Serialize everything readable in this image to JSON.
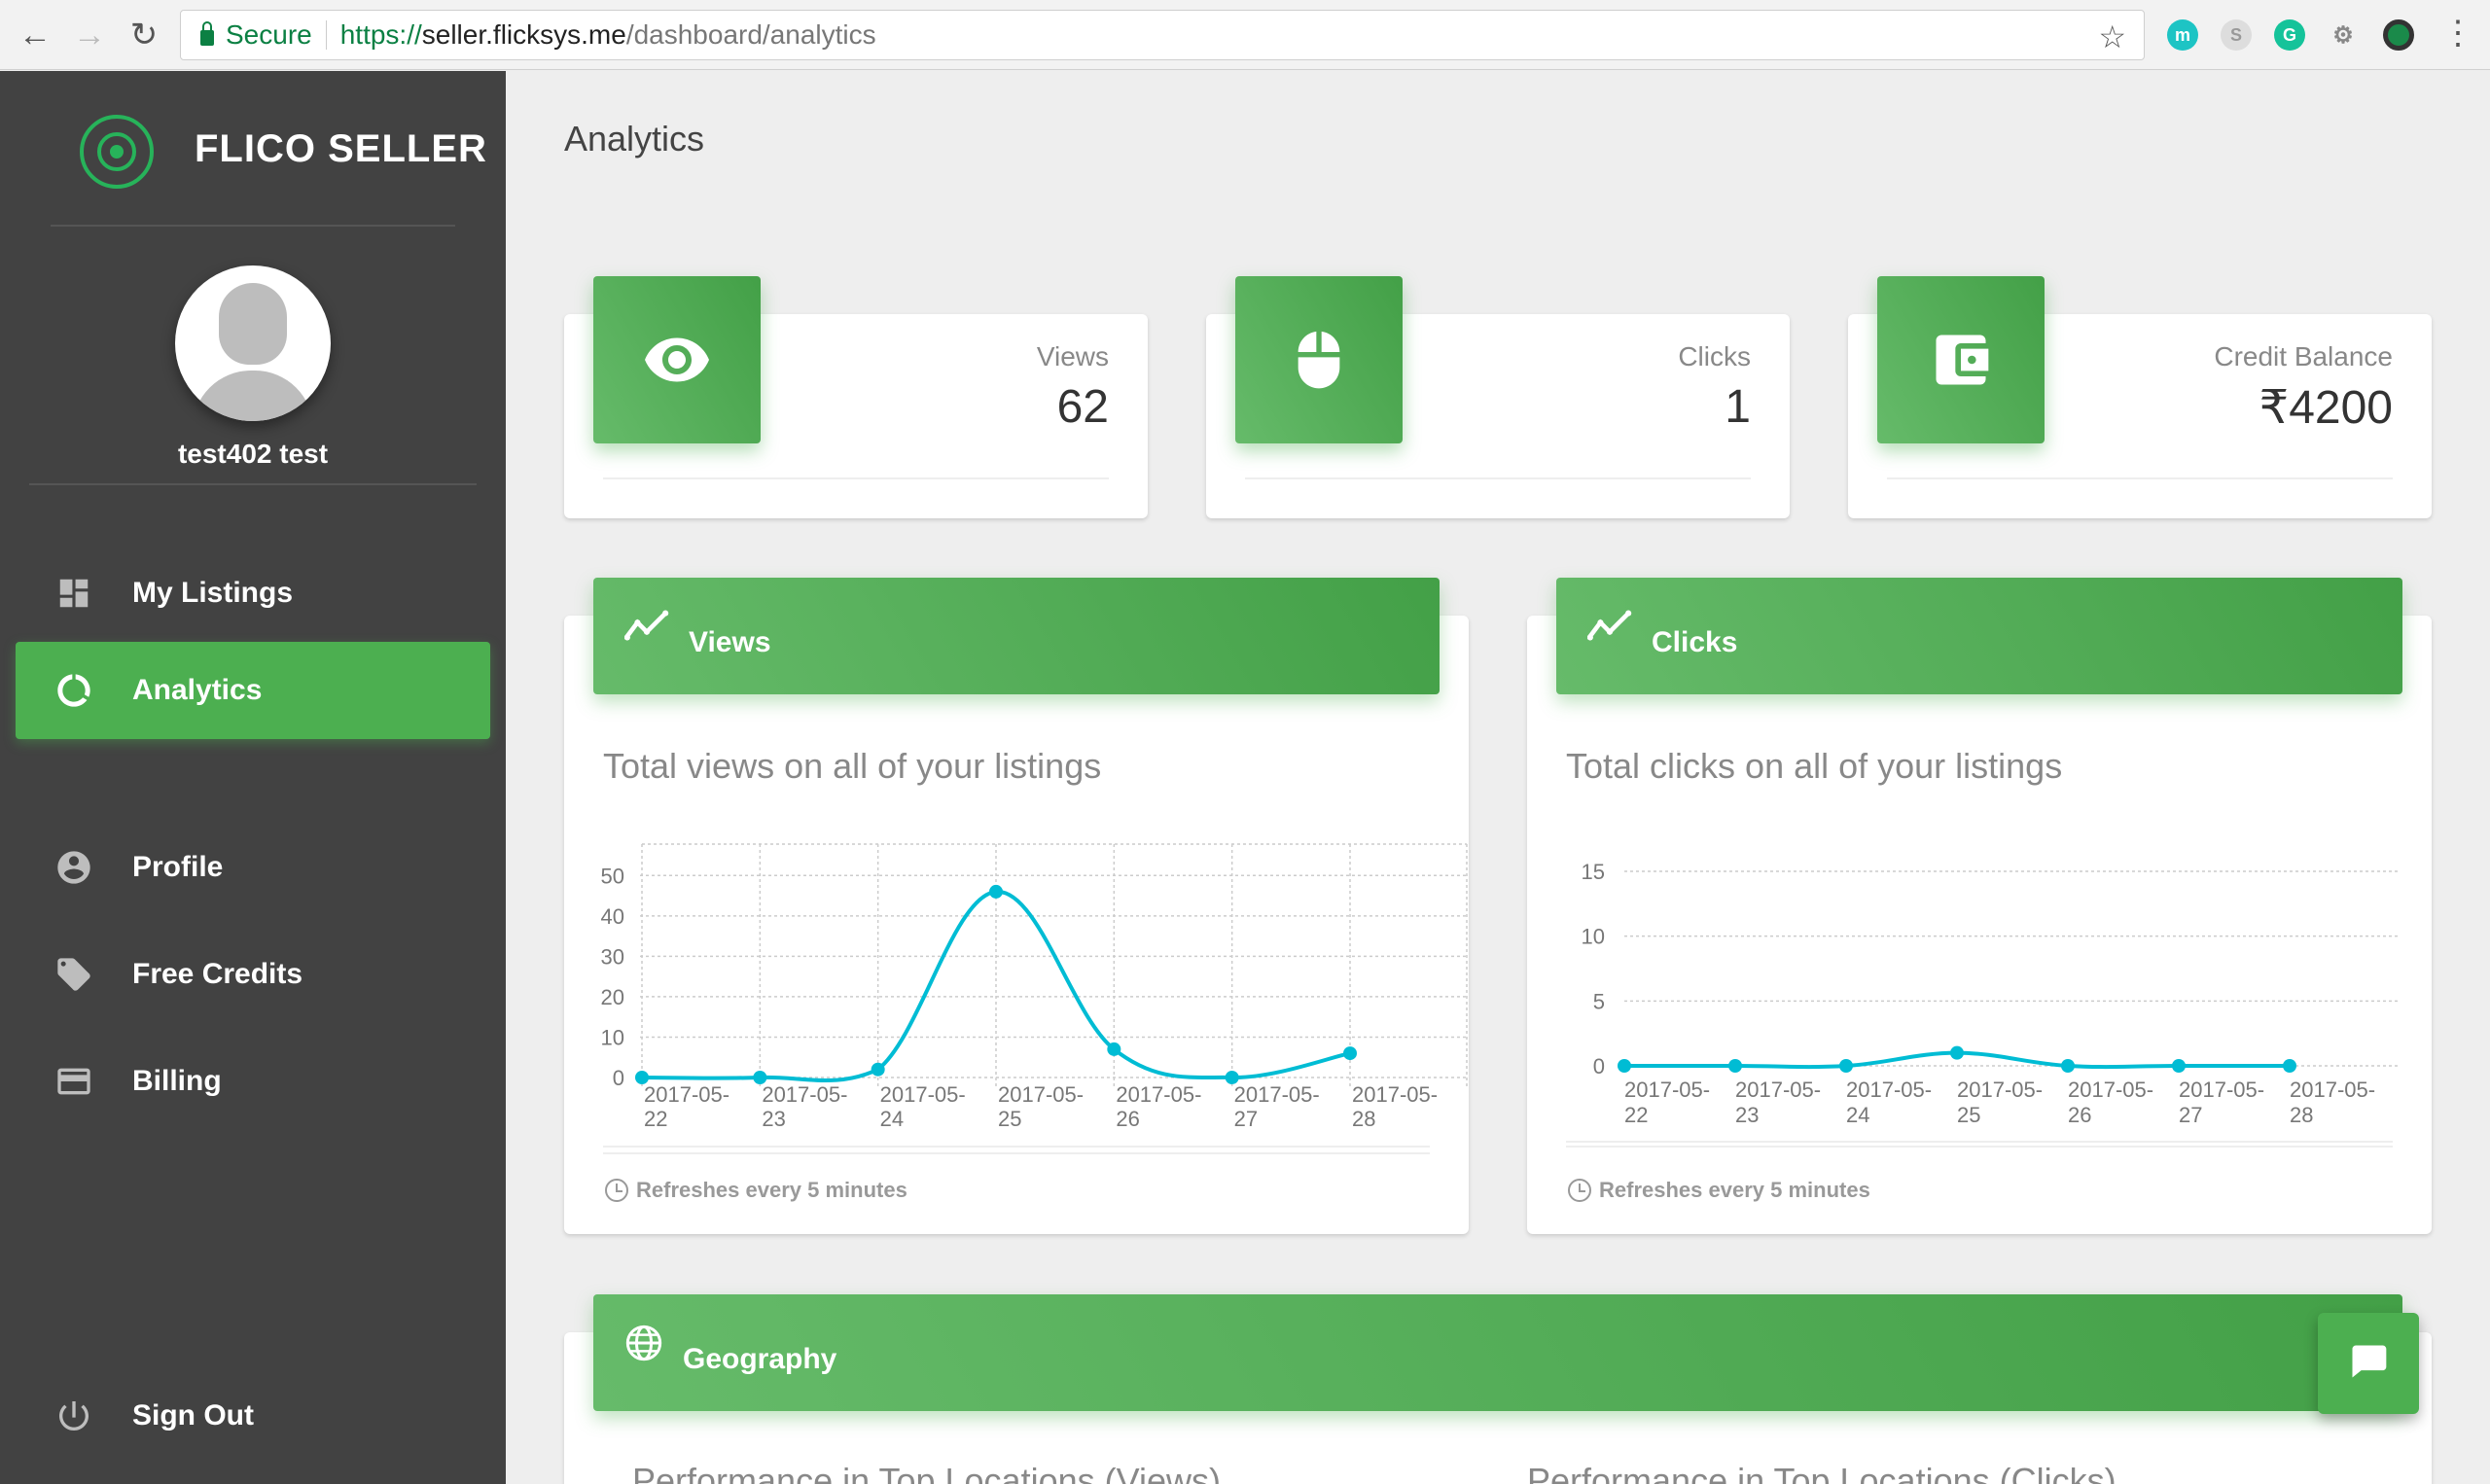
{
  "browser": {
    "secure_label": "Secure",
    "url_scheme": "https://",
    "url_host": "seller.flicksys.me",
    "url_path": "/dashboard/analytics"
  },
  "sidebar": {
    "brand": "FLICO SELLER",
    "username": "test402 test",
    "items": [
      {
        "label": "My Listings",
        "icon": "dashboard-icon"
      },
      {
        "label": "Analytics",
        "icon": "donut-icon",
        "active": true
      },
      {
        "label": "Profile",
        "icon": "account-circle-icon"
      },
      {
        "label": "Free Credits",
        "icon": "tag-icon"
      },
      {
        "label": "Billing",
        "icon": "credit-card-icon"
      }
    ],
    "signout": "Sign Out"
  },
  "page": {
    "title": "Analytics"
  },
  "stats": {
    "views": {
      "label": "Views",
      "value": "62"
    },
    "clicks": {
      "label": "Clicks",
      "value": "1"
    },
    "credit": {
      "label": "Credit Balance",
      "value": "₹4200"
    }
  },
  "views_panel": {
    "title": "Views",
    "subtitle": "Total views on all of your listings",
    "footer": "Refreshes every 5 minutes"
  },
  "clicks_panel": {
    "title": "Clicks",
    "subtitle": "Total clicks on all of your listings",
    "footer": "Refreshes every 5 minutes"
  },
  "geography": {
    "title": "Geography",
    "views_sub": "Performance in Top Locations (Views)",
    "clicks_sub": "Performance in Top Locations (Clicks)"
  },
  "chart_data": [
    {
      "type": "line",
      "categories": [
        [
          "2017-05-",
          "22"
        ],
        [
          "2017-05-",
          "23"
        ],
        [
          "2017-05-",
          "24"
        ],
        [
          "2017-05-",
          "25"
        ],
        [
          "2017-05-",
          "26"
        ],
        [
          "2017-05-",
          "27"
        ],
        [
          "2017-05-",
          "28"
        ]
      ],
      "series": [
        {
          "values": [
            0,
            0,
            2,
            46,
            7,
            0,
            6
          ]
        }
      ],
      "yticks": [
        0,
        10,
        20,
        30,
        40,
        50
      ],
      "ylim": [
        0,
        52
      ],
      "grid": true,
      "color": "#00bcd4"
    },
    {
      "type": "line",
      "categories": [
        [
          "2017-05-",
          "22"
        ],
        [
          "2017-05-",
          "23"
        ],
        [
          "2017-05-",
          "24"
        ],
        [
          "2017-05-",
          "25"
        ],
        [
          "2017-05-",
          "26"
        ],
        [
          "2017-05-",
          "27"
        ],
        [
          "2017-05-",
          "28"
        ]
      ],
      "series": [
        {
          "values": [
            0,
            0,
            0,
            1,
            0,
            0,
            0
          ]
        }
      ],
      "yticks": [
        0,
        5,
        10,
        15
      ],
      "ylim": [
        0,
        15
      ],
      "grid": true,
      "color": "#00bcd4"
    }
  ]
}
